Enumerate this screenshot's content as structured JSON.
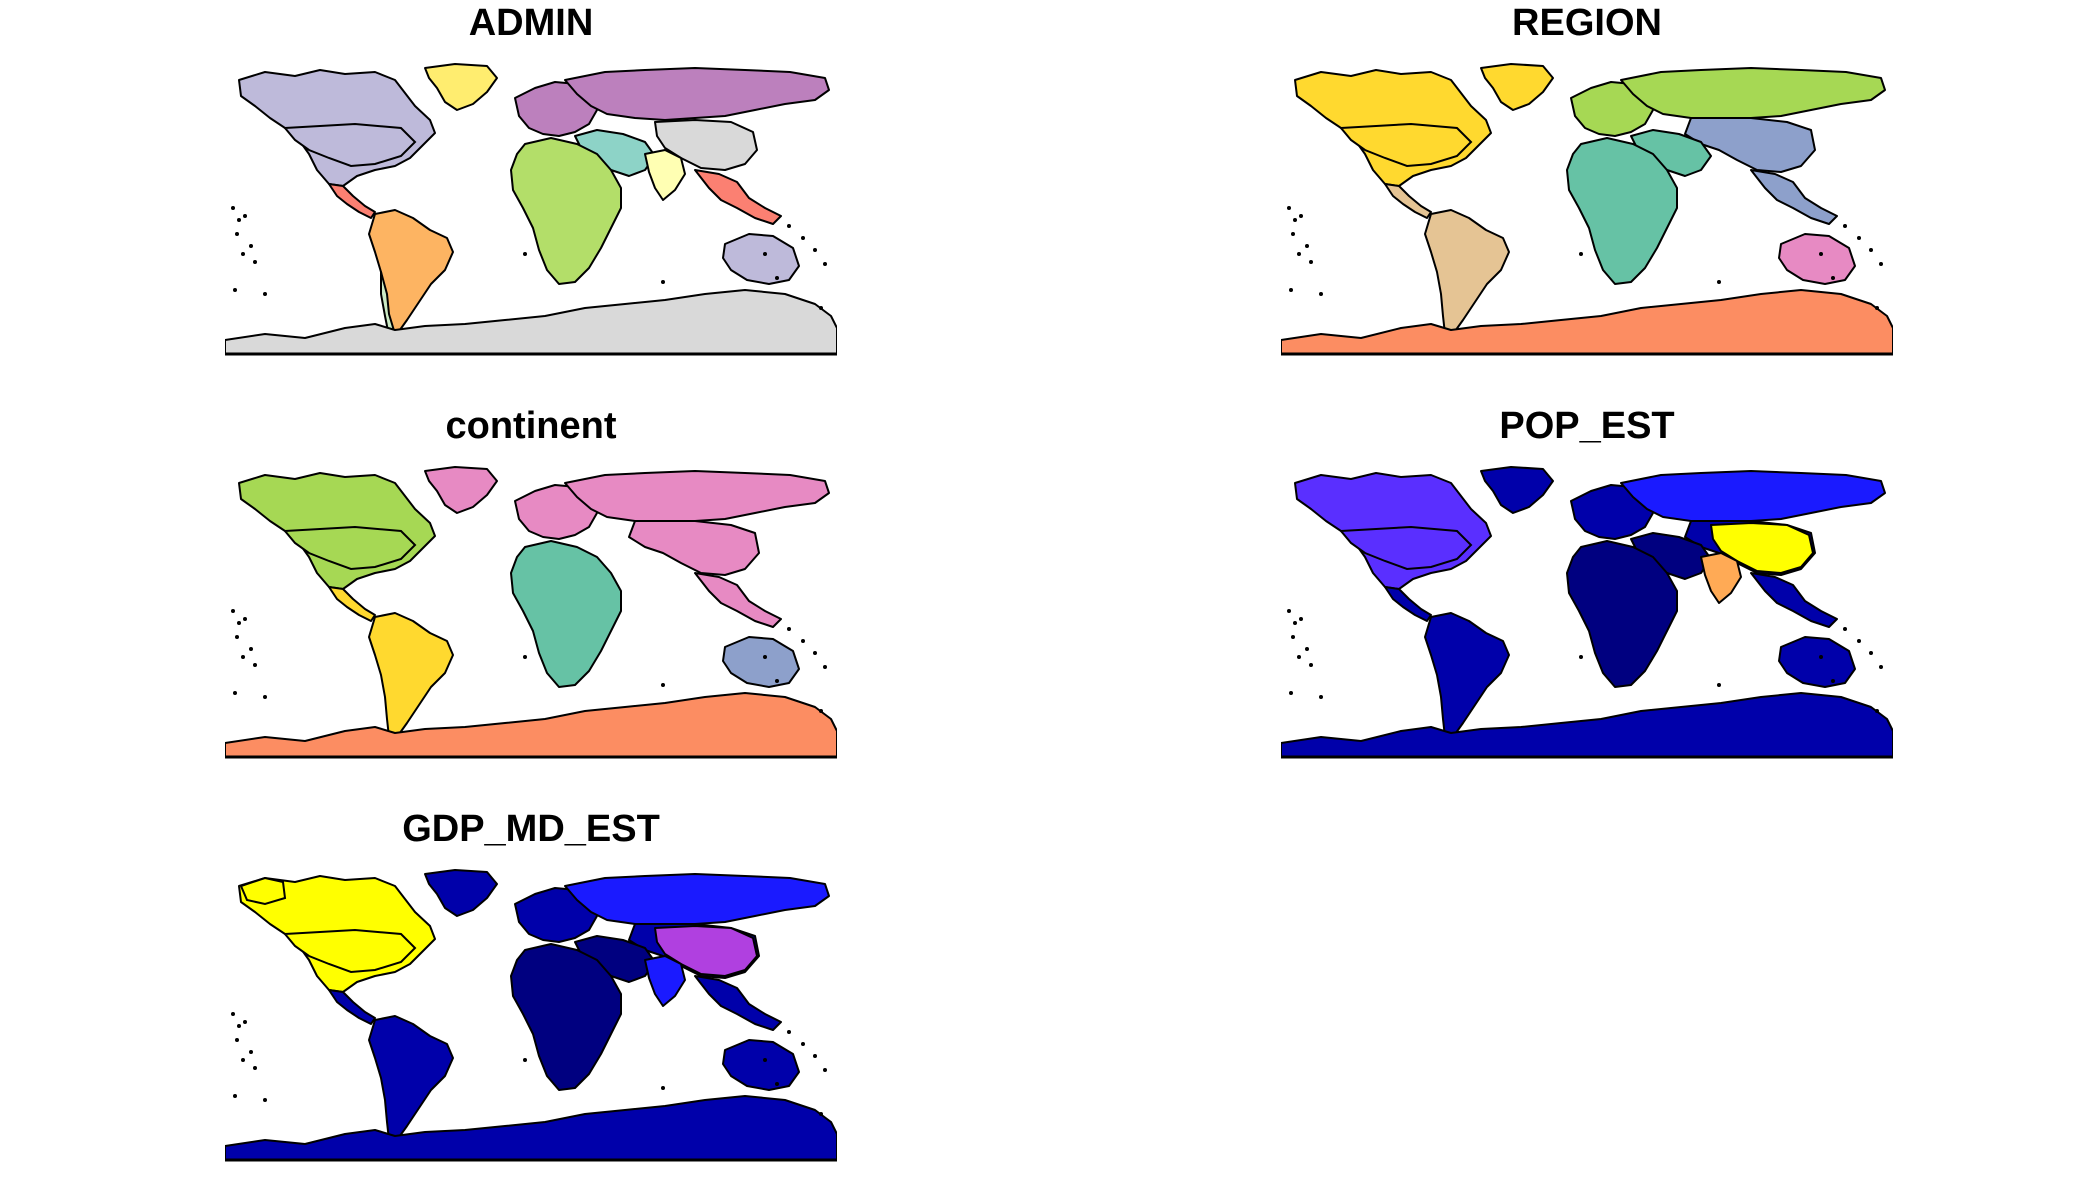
{
  "figure": {
    "panels": [
      {
        "id": "admin",
        "title": "ADMIN",
        "scheme": "admin"
      },
      {
        "id": "region",
        "title": "REGION",
        "scheme": "region"
      },
      {
        "id": "continent",
        "title": "continent",
        "scheme": "continent"
      },
      {
        "id": "pop_est",
        "title": "POP_EST",
        "scheme": "pop"
      },
      {
        "id": "gdp_md_est",
        "title": "GDP_MD_EST",
        "scheme": "gdp"
      }
    ]
  },
  "colors": {
    "admin": {
      "north_america": "#bebada",
      "greenland": "#ffed6f",
      "south_america": "#fdb462",
      "europe": "#bc80bd",
      "russia": "#bc80bd",
      "china": "#d9d9d9",
      "africa": "#b3de69",
      "middle_east": "#8dd3c7",
      "india": "#ffffb3",
      "southeast_asia": "#fb8072",
      "australia": "#bebada",
      "antarctica": "#d9d9d9",
      "central_america": "#fb8072",
      "chile": "#ccebc5"
    },
    "region": {
      "north_america": "#ffd92f",
      "greenland": "#ffd92f",
      "south_america": "#e5c494",
      "central_america": "#e5c494",
      "europe": "#a6d854",
      "russia": "#a6d854",
      "asia": "#8da0cb",
      "africa": "#66c2a5",
      "middle_east": "#66c2a5",
      "australia": "#e78ac3",
      "antarctica": "#fc8d62"
    },
    "continent": {
      "north_america": "#a6d854",
      "greenland": "#e78ac3",
      "south_america": "#ffd92f",
      "central_america": "#ffd92f",
      "europe": "#e78ac3",
      "russia": "#e78ac3",
      "asia": "#e78ac3",
      "africa": "#66c2a5",
      "australia": "#8da0cb",
      "antarctica": "#fc8d62"
    },
    "pop": {
      "default": "#0000aa",
      "dark": "#000080",
      "russia": "#1a1aff",
      "usa": "#5a2fff",
      "china": "#ffff00",
      "india": "#ffaa55",
      "antarctica": "#0000aa"
    },
    "gdp": {
      "default": "#0000aa",
      "dark": "#000080",
      "russia": "#1a1aff",
      "usa": "#ffff00",
      "alaska": "#ffff00",
      "china": "#b040e0",
      "india": "#1a1aff",
      "antarctica": "#0000aa"
    }
  }
}
